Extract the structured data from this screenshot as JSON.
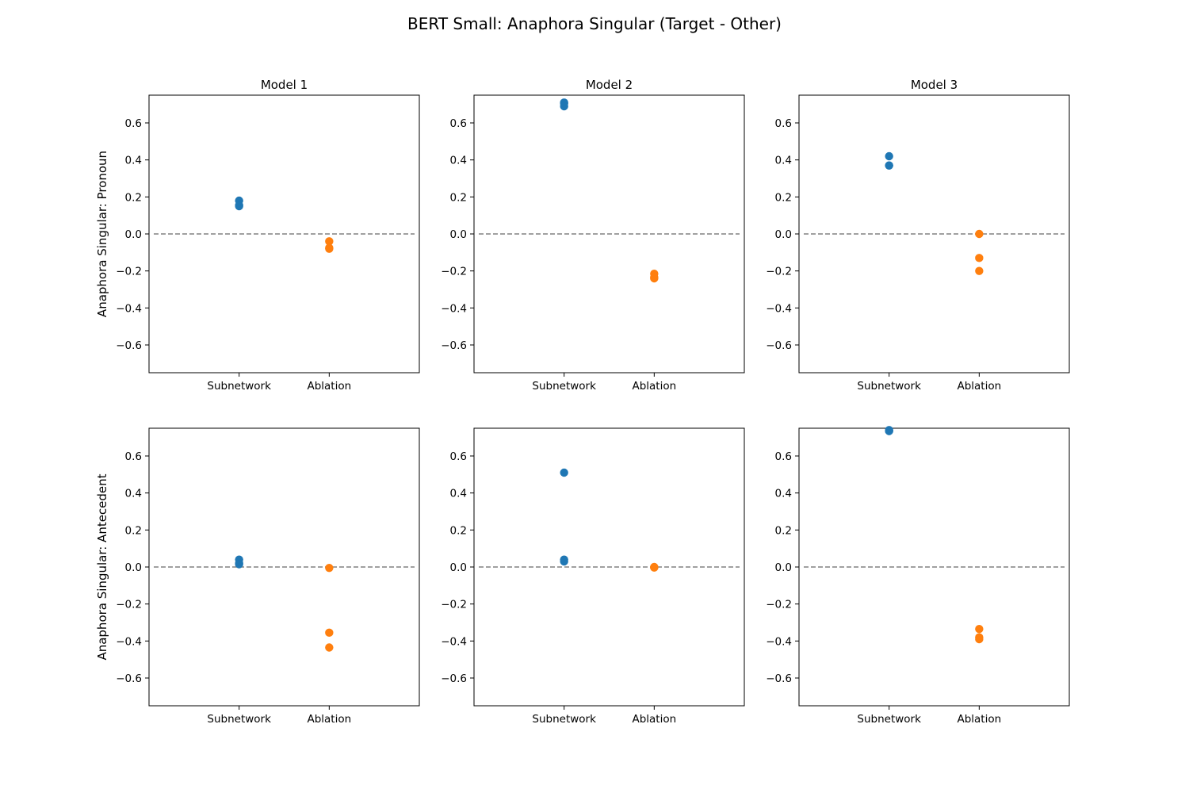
{
  "chart_data": {
    "type": "scatter",
    "title": "BERT Small: Anaphora Singular (Target - Other)",
    "categories": [
      "Subnetwork",
      "Ablation"
    ],
    "columns": [
      "Model 1",
      "Model 2",
      "Model 3"
    ],
    "rows": [
      "Anaphora Singular: Pronoun",
      "Anaphora Singular: Antecedent"
    ],
    "ylim": [
      -0.75,
      0.75
    ],
    "yticks": [
      -0.6,
      -0.4,
      -0.2,
      0.0,
      0.2,
      0.4,
      0.6
    ],
    "reference_line": 0.0,
    "grid": false,
    "colors": {
      "Subnetwork": "#1f77b4",
      "Ablation": "#ff7f0e",
      "reference_line": "#808080"
    },
    "panels": [
      {
        "row": 0,
        "col": 0,
        "Subnetwork": [
          0.18,
          0.155,
          0.15
        ],
        "Ablation": [
          -0.04,
          -0.075,
          -0.08
        ]
      },
      {
        "row": 0,
        "col": 1,
        "Subnetwork": [
          0.71,
          0.705,
          0.69
        ],
        "Ablation": [
          -0.215,
          -0.235,
          -0.24
        ]
      },
      {
        "row": 0,
        "col": 2,
        "Subnetwork": [
          0.42,
          0.37,
          0.37
        ],
        "Ablation": [
          0.0,
          -0.13,
          -0.2
        ]
      },
      {
        "row": 1,
        "col": 0,
        "Subnetwork": [
          0.04,
          0.02,
          0.015
        ],
        "Ablation": [
          -0.005,
          -0.355,
          -0.435
        ]
      },
      {
        "row": 1,
        "col": 1,
        "Subnetwork": [
          0.51,
          0.04,
          0.03
        ],
        "Ablation": [
          0.0,
          -0.002,
          -0.003
        ]
      },
      {
        "row": 1,
        "col": 2,
        "Subnetwork": [
          0.74,
          0.735,
          0.735
        ],
        "Ablation": [
          -0.335,
          -0.38,
          -0.39
        ]
      }
    ]
  }
}
